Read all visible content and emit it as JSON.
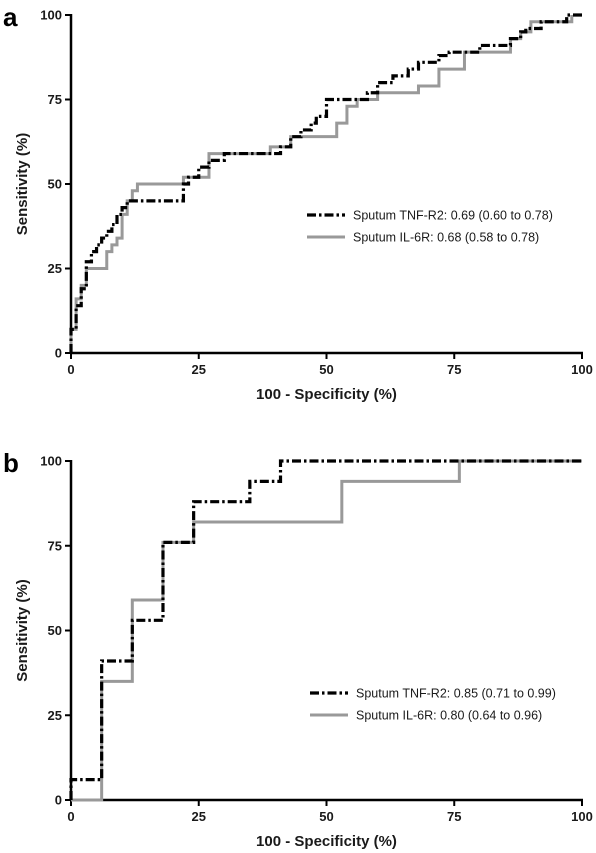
{
  "chart_data": [
    {
      "type": "line",
      "panel": "a",
      "xlabel": "100 - Specificity (%)",
      "ylabel": "Sensitivity (%)",
      "xlim": [
        0,
        100
      ],
      "ylim": [
        0,
        100
      ],
      "xticks": [
        0,
        25,
        50,
        75,
        100
      ],
      "yticks": [
        0,
        25,
        50,
        75,
        100
      ],
      "grid": false,
      "legend_position": "center-right",
      "series": [
        {
          "name": "Sputum TNF-R2: 0.69 (0.60 to 0.78)",
          "color": "#000000",
          "style": "dash-dot",
          "x": [
            0,
            0,
            1,
            1,
            2,
            2,
            3,
            3,
            4,
            4,
            5,
            5,
            6,
            6,
            7,
            7,
            8,
            8,
            9,
            9,
            10,
            10,
            11,
            11,
            13,
            13,
            15,
            15,
            22,
            22,
            23,
            23,
            25,
            25,
            27,
            27,
            30,
            30,
            34,
            34,
            41,
            41,
            43,
            43,
            45,
            45,
            47,
            47,
            48,
            48,
            50,
            50,
            55,
            55,
            58,
            58,
            60,
            60,
            63,
            63,
            66,
            66,
            68,
            68,
            70,
            70,
            72,
            72,
            74,
            74,
            77,
            77,
            80,
            80,
            83,
            83,
            86,
            86,
            88,
            88,
            89,
            89,
            92,
            92,
            94,
            94,
            97,
            97,
            100
          ],
          "y": [
            0,
            7,
            7,
            14,
            14,
            19,
            19,
            27,
            27,
            30,
            30,
            32,
            32,
            34,
            34,
            36,
            36,
            38,
            38,
            41,
            41,
            43,
            43,
            45,
            45,
            45,
            45,
            45,
            45,
            50,
            50,
            52,
            52,
            55,
            55,
            57,
            57,
            59,
            59,
            59,
            59,
            61,
            61,
            64,
            64,
            66,
            66,
            68,
            68,
            70,
            70,
            75,
            75,
            75,
            75,
            77,
            77,
            80,
            80,
            82,
            82,
            84,
            84,
            86,
            86,
            86,
            86,
            88,
            88,
            89,
            89,
            89,
            89,
            91,
            91,
            91,
            91,
            93,
            93,
            95,
            95,
            96,
            96,
            98,
            98,
            98,
            98,
            100,
            100
          ]
        },
        {
          "name": "Sputum IL-6R: 0.68 (0.58 to 0.78)",
          "color": "#999999",
          "style": "solid",
          "x": [
            0,
            0,
            1,
            1,
            2,
            2,
            3,
            3,
            5,
            5,
            7,
            7,
            8,
            8,
            9,
            9,
            10,
            10,
            11,
            11,
            12,
            12,
            13,
            13,
            18,
            18,
            22,
            22,
            27,
            27,
            39,
            39,
            43,
            43,
            52,
            52,
            54,
            54,
            56,
            56,
            60,
            60,
            68,
            68,
            72,
            72,
            77,
            77,
            86,
            86,
            88,
            88,
            90,
            90,
            98,
            98
          ],
          "y": [
            0,
            7,
            7,
            16,
            16,
            20,
            20,
            25,
            25,
            25,
            25,
            30,
            30,
            32,
            32,
            34,
            34,
            41,
            41,
            45,
            45,
            48,
            48,
            50,
            50,
            50,
            50,
            52,
            52,
            59,
            59,
            61,
            61,
            64,
            64,
            68,
            68,
            73,
            73,
            75,
            75,
            77,
            77,
            79,
            79,
            84,
            84,
            89,
            89,
            93,
            93,
            95,
            95,
            98,
            98,
            100
          ]
        }
      ]
    },
    {
      "type": "line",
      "panel": "b",
      "xlabel": "100 - Specificity (%)",
      "ylabel": "Sensitivity (%)",
      "xlim": [
        0,
        100
      ],
      "ylim": [
        0,
        100
      ],
      "xticks": [
        0,
        25,
        50,
        75,
        100
      ],
      "yticks": [
        0,
        25,
        50,
        75,
        100
      ],
      "grid": false,
      "legend_position": "bottom-right",
      "series": [
        {
          "name": "Sputum TNF-R2: 0.85 (0.71 to 0.99)",
          "color": "#000000",
          "style": "dash-dot",
          "x": [
            0,
            0,
            6,
            6,
            12,
            12,
            18,
            18,
            24,
            24,
            35,
            35,
            41,
            41,
            100
          ],
          "y": [
            0,
            6,
            6,
            41,
            41,
            53,
            53,
            76,
            76,
            88,
            88,
            94,
            94,
            100,
            100
          ]
        },
        {
          "name": "Sputum IL-6R: 0.80 (0.64 to 0.96)",
          "color": "#999999",
          "style": "solid",
          "x": [
            0,
            6,
            6,
            12,
            12,
            18,
            18,
            24,
            24,
            53,
            53,
            76,
            76,
            100
          ],
          "y": [
            0,
            0,
            35,
            35,
            59,
            59,
            76,
            76,
            82,
            82,
            94,
            94,
            100,
            100
          ]
        }
      ]
    }
  ]
}
